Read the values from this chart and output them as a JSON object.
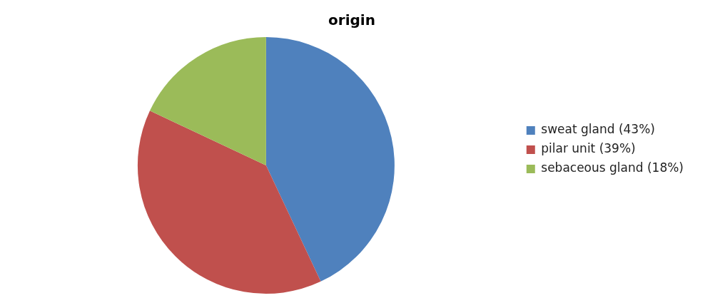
{
  "chart_data": {
    "type": "pie",
    "title": "origin",
    "categories": [
      "sweat gland (43%)",
      "pilar unit (39%)",
      "sebaceous gland (18%)"
    ],
    "values": [
      43,
      39,
      18
    ],
    "colors": [
      "#4f81bd",
      "#c0504d",
      "#9bbb59"
    ],
    "legend": "right"
  }
}
